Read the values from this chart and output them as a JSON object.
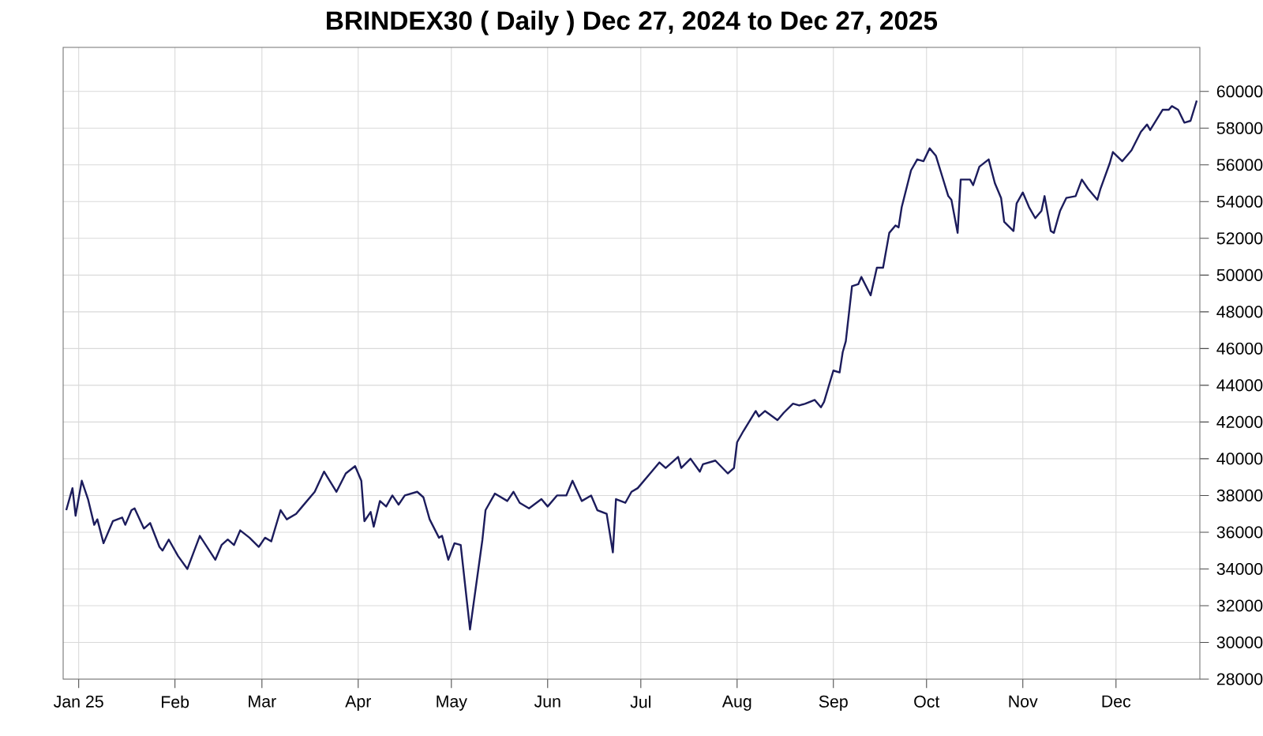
{
  "chart_data": {
    "type": "line",
    "title": "BRINDEX30 ( Daily ) Dec 27, 2024 to Dec 27, 2025",
    "x": [
      "2024-12-28",
      "2024-12-30",
      "2024-12-31",
      "2025-01-02",
      "2025-01-04",
      "2025-01-06",
      "2025-01-07",
      "2025-01-09",
      "2025-01-12",
      "2025-01-15",
      "2025-01-16",
      "2025-01-18",
      "2025-01-19",
      "2025-01-22",
      "2025-01-24",
      "2025-01-27",
      "2025-01-28",
      "2025-01-30",
      "2025-02-02",
      "2025-02-05",
      "2025-02-09",
      "2025-02-14",
      "2025-02-16",
      "2025-02-18",
      "2025-02-20",
      "2025-02-22",
      "2025-02-25",
      "2025-02-28",
      "2025-03-02",
      "2025-03-04",
      "2025-03-07",
      "2025-03-09",
      "2025-03-12",
      "2025-03-14",
      "2025-03-18",
      "2025-03-21",
      "2025-03-25",
      "2025-03-28",
      "2025-03-31",
      "2025-04-02",
      "2025-04-03",
      "2025-04-05",
      "2025-04-06",
      "2025-04-08",
      "2025-04-10",
      "2025-04-12",
      "2025-04-14",
      "2025-04-16",
      "2025-04-20",
      "2025-04-22",
      "2025-04-24",
      "2025-04-27",
      "2025-04-28",
      "2025-04-30",
      "2025-05-02",
      "2025-05-04",
      "2025-05-07",
      "2025-05-11",
      "2025-05-12",
      "2025-05-15",
      "2025-05-19",
      "2025-05-21",
      "2025-05-23",
      "2025-05-26",
      "2025-05-30",
      "2025-06-01",
      "2025-06-04",
      "2025-06-07",
      "2025-06-09",
      "2025-06-12",
      "2025-06-15",
      "2025-06-17",
      "2025-06-20",
      "2025-06-22",
      "2025-06-23",
      "2025-06-26",
      "2025-06-28",
      "2025-06-30",
      "2025-07-04",
      "2025-07-07",
      "2025-07-09",
      "2025-07-13",
      "2025-07-14",
      "2025-07-17",
      "2025-07-20",
      "2025-07-21",
      "2025-07-25",
      "2025-07-29",
      "2025-07-31",
      "2025-08-01",
      "2025-08-03",
      "2025-08-07",
      "2025-08-08",
      "2025-08-10",
      "2025-08-14",
      "2025-08-16",
      "2025-08-19",
      "2025-08-21",
      "2025-08-23",
      "2025-08-26",
      "2025-08-28",
      "2025-08-29",
      "2025-09-01",
      "2025-09-03",
      "2025-09-04",
      "2025-09-05",
      "2025-09-07",
      "2025-09-09",
      "2025-09-10",
      "2025-09-13",
      "2025-09-15",
      "2025-09-17",
      "2025-09-19",
      "2025-09-21",
      "2025-09-22",
      "2025-09-23",
      "2025-09-26",
      "2025-09-28",
      "2025-09-30",
      "2025-10-02",
      "2025-10-04",
      "2025-10-06",
      "2025-10-08",
      "2025-10-09",
      "2025-10-11",
      "2025-10-12",
      "2025-10-15",
      "2025-10-16",
      "2025-10-18",
      "2025-10-21",
      "2025-10-23",
      "2025-10-25",
      "2025-10-26",
      "2025-10-29",
      "2025-10-30",
      "2025-11-01",
      "2025-11-03",
      "2025-11-05",
      "2025-11-07",
      "2025-11-08",
      "2025-11-10",
      "2025-11-11",
      "2025-11-13",
      "2025-11-15",
      "2025-11-18",
      "2025-11-20",
      "2025-11-22",
      "2025-11-25",
      "2025-11-26",
      "2025-11-29",
      "2025-11-30",
      "2025-12-03",
      "2025-12-06",
      "2025-12-09",
      "2025-12-11",
      "2025-12-12",
      "2025-12-16",
      "2025-12-18",
      "2025-12-19",
      "2025-12-21",
      "2025-12-23",
      "2025-12-25",
      "2025-12-27"
    ],
    "series": [
      {
        "color": "#1c1c5c",
        "values": [
          37200,
          38400,
          36900,
          38800,
          37800,
          36400,
          36700,
          35400,
          36600,
          36800,
          36400,
          37200,
          37300,
          36200,
          36500,
          35200,
          35000,
          35600,
          34700,
          34000,
          35800,
          34500,
          35300,
          35600,
          35300,
          36100,
          35700,
          35200,
          35700,
          35500,
          37200,
          36700,
          37000,
          37400,
          38200,
          39300,
          38200,
          39200,
          39600,
          38800,
          36600,
          37100,
          36300,
          37700,
          37400,
          38000,
          37500,
          38000,
          38200,
          37900,
          36700,
          35700,
          35800,
          34500,
          35400,
          35300,
          30700,
          35600,
          37200,
          38100,
          37700,
          38200,
          37600,
          37300,
          37800,
          37400,
          38000,
          38000,
          38800,
          37700,
          38000,
          37200,
          37000,
          34900,
          37800,
          37600,
          38200,
          38400,
          39200,
          39800,
          39500,
          40100,
          39500,
          40000,
          39300,
          39700,
          39900,
          39200,
          39500,
          40900,
          41500,
          42600,
          42300,
          42600,
          42100,
          42500,
          43000,
          42900,
          43000,
          43200,
          42800,
          43100,
          44800,
          44700,
          45800,
          46400,
          49400,
          49500,
          49900,
          48900,
          50400,
          50400,
          52300,
          52700,
          52600,
          53700,
          55700,
          56300,
          56200,
          56900,
          56500,
          55400,
          54300,
          54100,
          52300,
          55200,
          55200,
          54900,
          55900,
          56300,
          55000,
          54200,
          52900,
          52400,
          53900,
          54500,
          53700,
          53100,
          53500,
          54300,
          52400,
          52300,
          53500,
          54200,
          54300,
          55200,
          54700,
          54100,
          54700,
          56100,
          56700,
          56200,
          56800,
          57800,
          58200,
          57900,
          59000,
          59000,
          59200,
          59000,
          58300,
          58400,
          59500
        ]
      }
    ],
    "xlim": [
      "2024-12-27",
      "2025-12-28"
    ],
    "xticks": [
      {
        "value": "2025-01-01",
        "label": "Jan 25"
      },
      {
        "value": "2025-02-01",
        "label": "Feb"
      },
      {
        "value": "2025-03-01",
        "label": "Mar"
      },
      {
        "value": "2025-04-01",
        "label": "Apr"
      },
      {
        "value": "2025-05-01",
        "label": "May"
      },
      {
        "value": "2025-06-01",
        "label": "Jun"
      },
      {
        "value": "2025-07-01",
        "label": "Jul"
      },
      {
        "value": "2025-08-01",
        "label": "Aug"
      },
      {
        "value": "2025-09-01",
        "label": "Sep"
      },
      {
        "value": "2025-10-01",
        "label": "Oct"
      },
      {
        "value": "2025-11-01",
        "label": "Nov"
      },
      {
        "value": "2025-12-01",
        "label": "Dec"
      }
    ],
    "ylim": [
      28000,
      62400
    ],
    "yticks": [
      28000,
      30000,
      32000,
      34000,
      36000,
      38000,
      40000,
      42000,
      44000,
      46000,
      48000,
      50000,
      52000,
      54000,
      56000,
      58000,
      60000
    ],
    "grid": true,
    "marker": "none",
    "line_style": "solid"
  }
}
